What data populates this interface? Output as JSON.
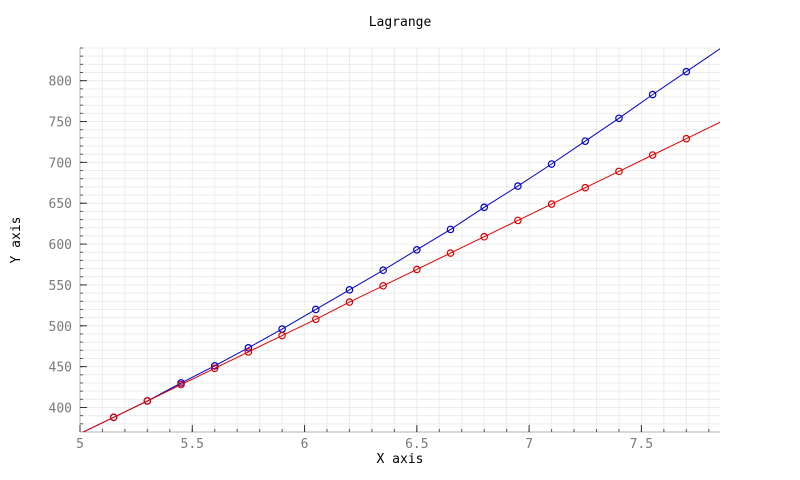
{
  "chart_data": {
    "type": "line",
    "title": "Lagrange",
    "xlabel": "X axis",
    "ylabel": "Y axis",
    "xlim": [
      5,
      7.85
    ],
    "ylim": [
      370,
      840
    ],
    "x_ticks": [
      5,
      5.5,
      6,
      6.5,
      7,
      7.5
    ],
    "x_tick_labels": [
      "5",
      "5.5",
      "6",
      "6.5",
      "7",
      "7.5"
    ],
    "y_ticks": [
      400,
      450,
      500,
      550,
      600,
      650,
      700,
      750,
      800
    ],
    "y_tick_labels": [
      "400",
      "450",
      "500",
      "550",
      "600",
      "650",
      "700",
      "750",
      "800"
    ],
    "grid": true,
    "series": [
      {
        "color": "#0000cc",
        "line_x": [
          5,
          7.85
        ],
        "points_x": [
          5.15,
          5.3,
          5.45,
          5.6,
          5.75,
          5.9,
          6.05,
          6.2,
          6.35,
          6.5,
          6.65,
          6.8,
          6.95,
          7.1,
          7.25,
          7.4,
          7.55,
          7.7
        ],
        "points_y": [
          388,
          408,
          430,
          451,
          473,
          496,
          520,
          544,
          568,
          593,
          618,
          645,
          671,
          698,
          726,
          754,
          783,
          811
        ]
      },
      {
        "color": "#dd0000",
        "line_x": [
          5,
          7.85
        ],
        "points_x": [
          5.15,
          5.3,
          5.45,
          5.6,
          5.75,
          5.9,
          6.05,
          6.2,
          6.35,
          6.5,
          6.65,
          6.8,
          6.95,
          7.1,
          7.25,
          7.4,
          7.55,
          7.7
        ],
        "points_y": [
          388,
          408,
          428,
          448,
          468,
          488,
          508,
          529,
          549,
          569,
          589,
          609,
          629,
          649,
          669,
          689,
          709,
          729
        ]
      }
    ]
  }
}
